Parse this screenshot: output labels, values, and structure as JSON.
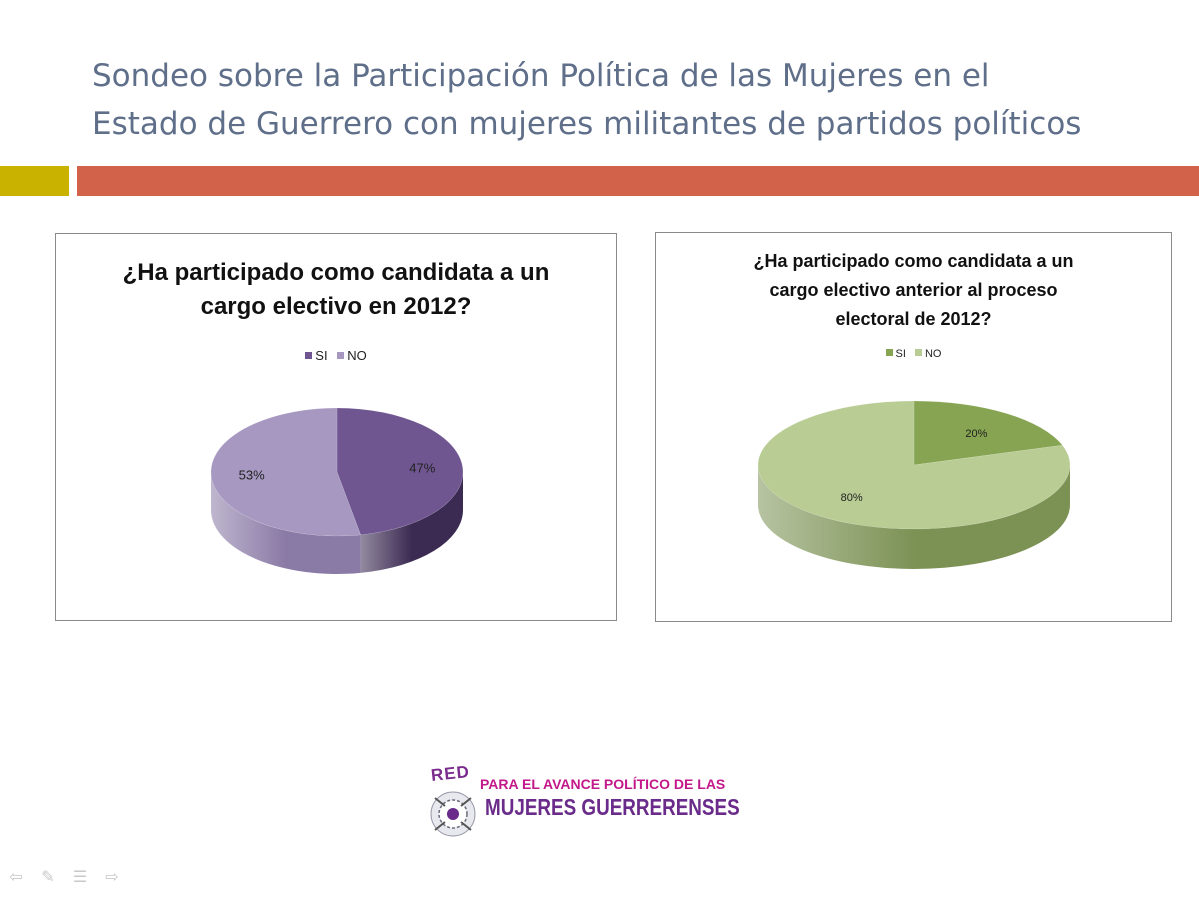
{
  "slide": {
    "title_line1": "Sondeo sobre la Participación Política de las Mujeres en el",
    "title_line2": "Estado de Guerrero con mujeres militantes de partidos políticos"
  },
  "colors": {
    "title": "#5f6f8a",
    "accent_left": "#c9b300",
    "accent_right": "#d2624a"
  },
  "chart_data": [
    {
      "type": "pie",
      "style": "3d",
      "title_line1": "¿Ha participado como candidata a un",
      "title_line2": "cargo electivo en 2012?",
      "legend_position": "top",
      "categories": [
        "SI",
        "NO"
      ],
      "values": [
        47,
        53
      ],
      "labels": [
        "47%",
        "53%"
      ],
      "colors": [
        "#6f5690",
        "#a698c0"
      ],
      "side_colors": [
        "#3b2a52",
        "#8a7aa6"
      ]
    },
    {
      "type": "pie",
      "style": "3d",
      "title_line1": "¿Ha participado como candidata a un",
      "title_line2": "cargo electivo anterior al proceso",
      "title_line3": "electoral de  2012?",
      "legend_position": "top",
      "categories": [
        "SI",
        "NO"
      ],
      "values": [
        20,
        80
      ],
      "labels": [
        "20%",
        "80%"
      ],
      "colors": [
        "#86a451",
        "#b8cc94"
      ],
      "side_colors": [
        "#52682f",
        "#7c9255"
      ]
    }
  ],
  "logo": {
    "red": "RED",
    "line1": "PARA EL AVANCE POLÍTICO DE LAS",
    "line2": "MUJERES GUERRERENSES"
  },
  "nav": {
    "icons": [
      "previous-arrow-icon",
      "pen-icon",
      "menu-icon",
      "next-arrow-icon"
    ]
  }
}
